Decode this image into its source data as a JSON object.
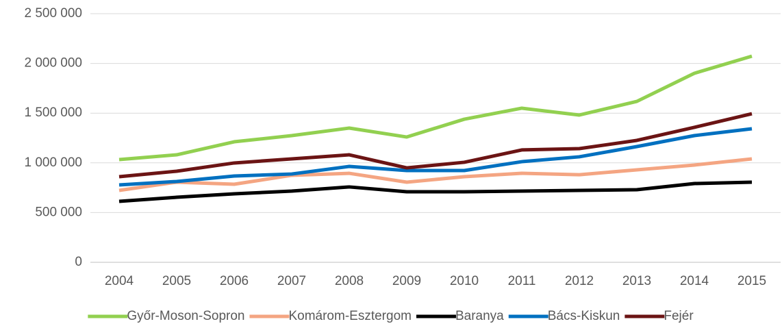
{
  "chart_data": {
    "type": "line",
    "categories": [
      "2004",
      "2005",
      "2006",
      "2007",
      "2008",
      "2009",
      "2010",
      "2011",
      "2012",
      "2013",
      "2014",
      "2015"
    ],
    "series": [
      {
        "name": "Győr-Moson-Sopron",
        "color": "#92d050",
        "values": [
          1033000,
          1081000,
          1212000,
          1274000,
          1350000,
          1260000,
          1439000,
          1550000,
          1481000,
          1618000,
          1901000,
          2073000
        ]
      },
      {
        "name": "Komárom-Esztergom",
        "color": "#f4a582",
        "values": [
          723000,
          806000,
          785000,
          875000,
          895000,
          806000,
          861000,
          895000,
          881000,
          930000,
          978000,
          1040000
        ]
      },
      {
        "name": "Baranya",
        "color": "#000000",
        "values": [
          613000,
          654000,
          689000,
          716000,
          758000,
          709000,
          709000,
          716000,
          723000,
          730000,
          792000,
          806000
        ]
      },
      {
        "name": "Bács-Kiskun",
        "color": "#0070c0",
        "values": [
          778000,
          813000,
          868000,
          888000,
          964000,
          923000,
          923000,
          1012000,
          1061000,
          1164000,
          1274000,
          1343000
        ]
      },
      {
        "name": "Fejér",
        "color": "#6b1414",
        "values": [
          861000,
          916000,
          999000,
          1040000,
          1081000,
          950000,
          1006000,
          1130000,
          1143000,
          1226000,
          1357000,
          1494000
        ]
      }
    ],
    "ylim": [
      0,
      2500000
    ],
    "yticks": [
      0,
      {
        "value": 500000,
        "label": "500 000"
      },
      {
        "value": 1000000,
        "label": "1 000 000"
      },
      {
        "value": 1500000,
        "label": "1 500 000"
      },
      {
        "value": 2000000,
        "label": "2 000 000"
      },
      {
        "value": 2500000,
        "label": "2 500 000"
      }
    ],
    "grid": true,
    "legend": "bottom"
  }
}
